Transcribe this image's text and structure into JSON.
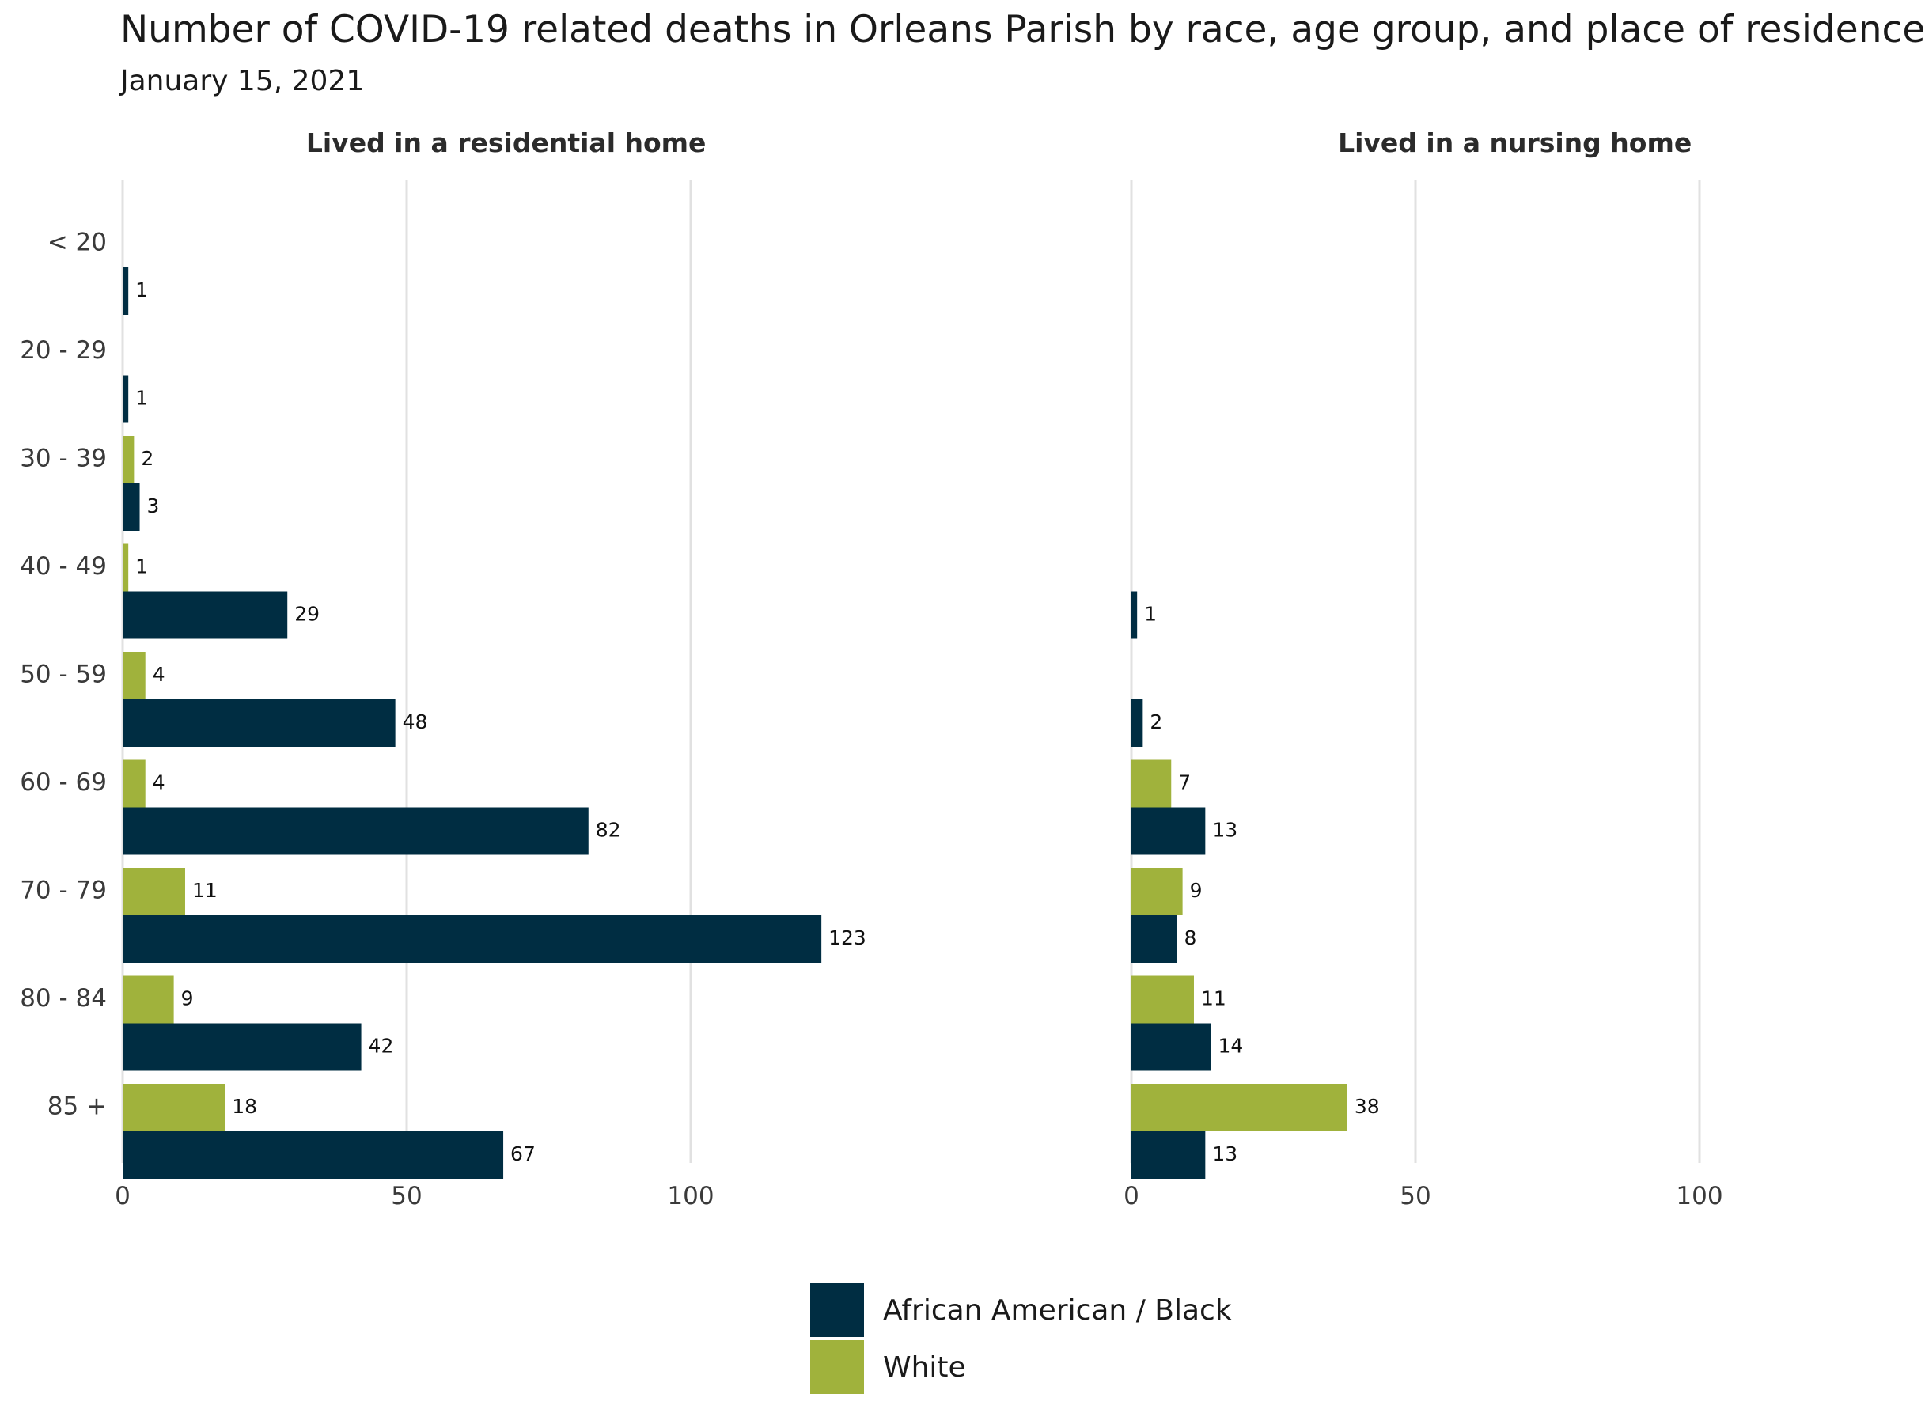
{
  "chart_data": {
    "type": "bar",
    "orientation": "horizontal",
    "title": "Number of COVID-19 related deaths in Orleans Parish by race, age group, and place of residence",
    "subtitle": "January 15, 2021",
    "categories": [
      "< 20",
      "20 - 29",
      "30 - 39",
      "40 - 49",
      "50 - 59",
      "60 - 69",
      "70 - 79",
      "80 - 84",
      "85 +"
    ],
    "x_ticks": [
      "0",
      "50",
      "100"
    ],
    "xlim": [
      0,
      130
    ],
    "grid": true,
    "legend_position": "bottom",
    "panels": [
      {
        "title": "Lived in a residential home",
        "series": [
          {
            "name": "White",
            "color": "#a0b23c",
            "values": [
              null,
              null,
              2,
              1,
              4,
              4,
              11,
              9,
              18
            ]
          },
          {
            "name": "African American / Black",
            "color": "#002d42",
            "values": [
              1,
              1,
              3,
              29,
              48,
              82,
              123,
              42,
              67
            ]
          }
        ]
      },
      {
        "title": "Lived in a nursing home",
        "series": [
          {
            "name": "White",
            "color": "#a0b23c",
            "values": [
              null,
              null,
              null,
              null,
              null,
              7,
              9,
              11,
              38
            ]
          },
          {
            "name": "African American / Black",
            "color": "#002d42",
            "values": [
              null,
              null,
              null,
              1,
              2,
              13,
              8,
              14,
              13
            ]
          }
        ]
      }
    ],
    "legend": [
      {
        "label": "African American / Black",
        "color": "#002d42"
      },
      {
        "label": "White",
        "color": "#a0b23c"
      }
    ]
  }
}
